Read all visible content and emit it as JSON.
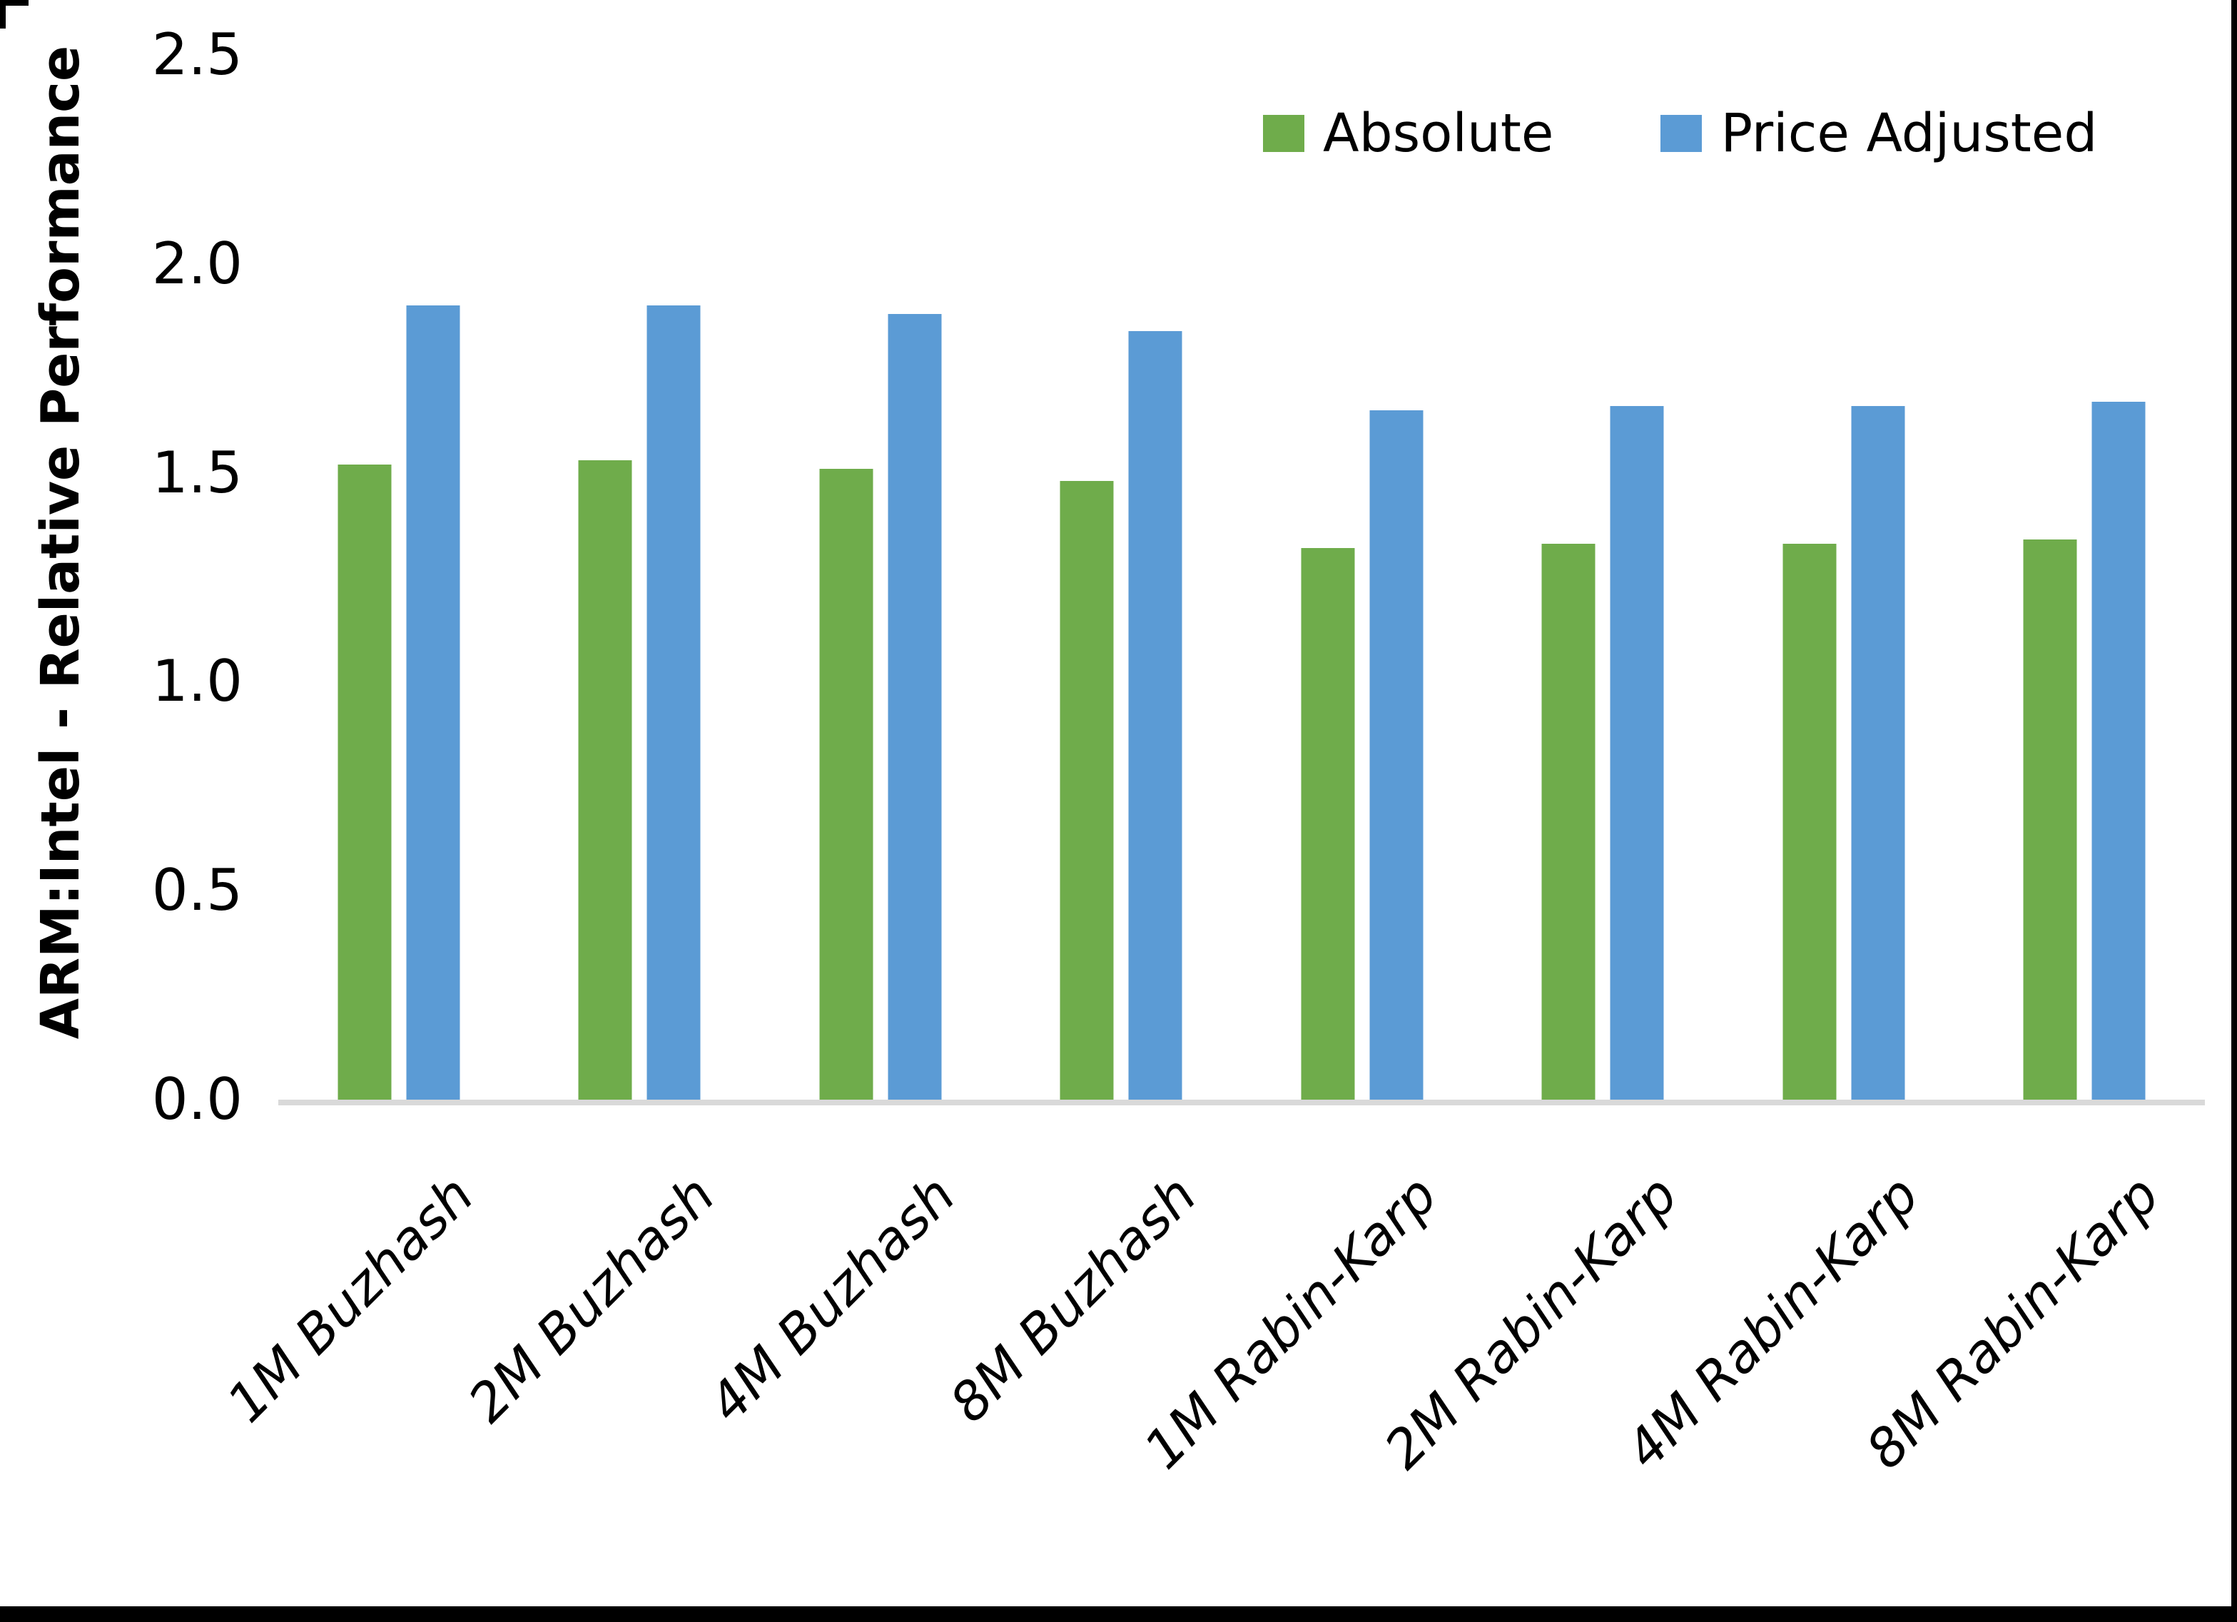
{
  "chart_data": {
    "type": "bar",
    "title": "",
    "ylabel": "ARM:Intel - Relative Performance",
    "xlabel": "",
    "ylim": [
      0,
      2.5
    ],
    "ytick_labels": [
      "0.0",
      "0.5",
      "1.0",
      "1.5",
      "2.0",
      "2.5"
    ],
    "grid": false,
    "legend_position": "top-right",
    "categories": [
      "1M Buzhash",
      "2M Buzhash",
      "4M Buzhash",
      "8M Buzhash",
      "1M Rabin-Karp",
      "2M Rabin-Karp",
      "4M Rabin-Karp",
      "8M Rabin-Karp"
    ],
    "series": [
      {
        "name": "Absolute",
        "color": "#6FAC4B",
        "values": [
          1.52,
          1.53,
          1.51,
          1.48,
          1.32,
          1.33,
          1.33,
          1.34
        ]
      },
      {
        "name": "Price Adjusted",
        "color": "#5B9BD5",
        "values": [
          1.9,
          1.9,
          1.88,
          1.84,
          1.65,
          1.66,
          1.66,
          1.67
        ]
      }
    ]
  }
}
